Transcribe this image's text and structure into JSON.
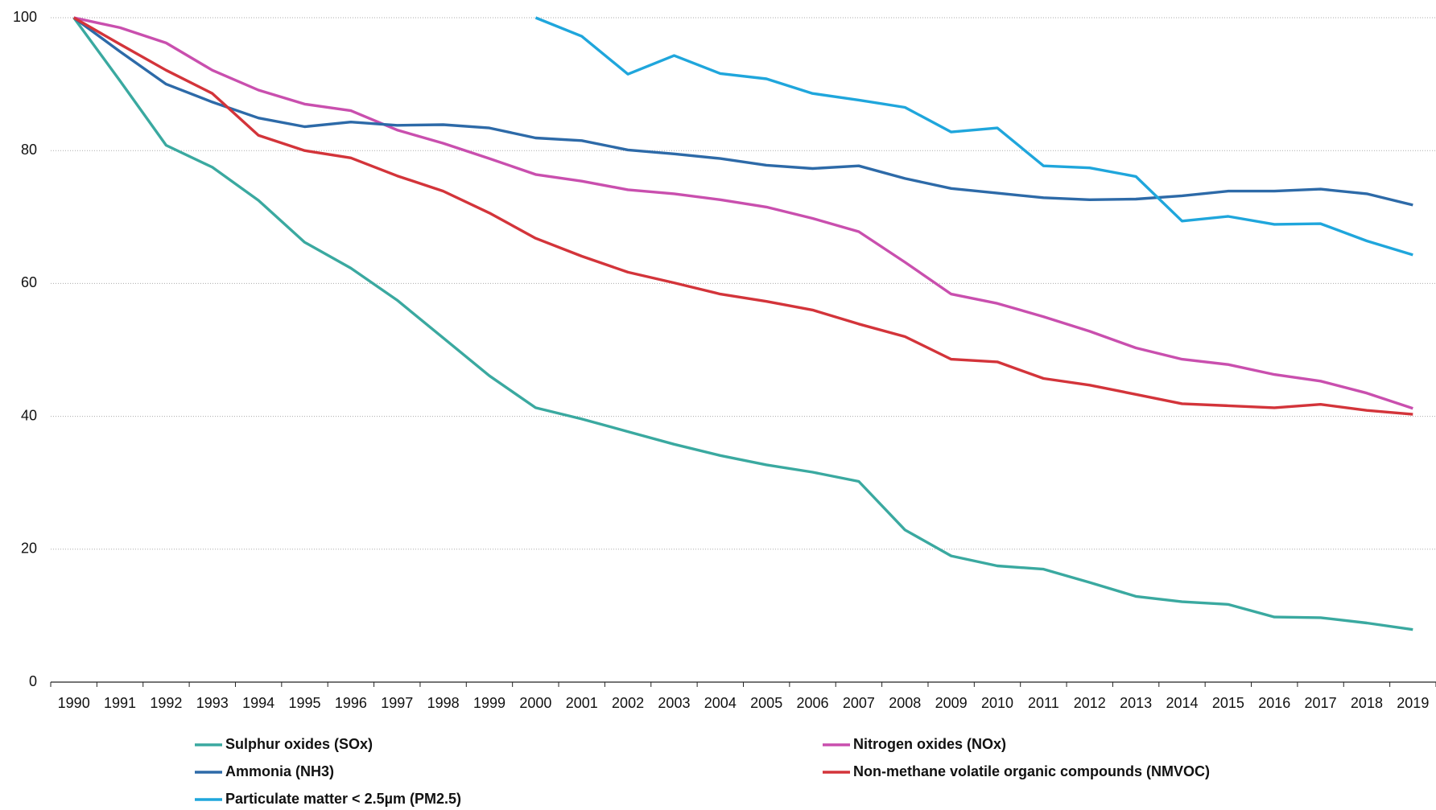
{
  "chart_data": {
    "type": "line",
    "categories": [
      "1990",
      "1991",
      "1992",
      "1993",
      "1994",
      "1995",
      "1996",
      "1997",
      "1998",
      "1999",
      "2000",
      "2001",
      "2002",
      "2003",
      "2004",
      "2005",
      "2006",
      "2007",
      "2008",
      "2009",
      "2010",
      "2011",
      "2012",
      "2013",
      "2014",
      "2015",
      "2016",
      "2017",
      "2018",
      "2019"
    ],
    "series": [
      {
        "name": "Sulphur oxides (SOx)",
        "color": "#3aa9a0",
        "values": [
          100,
          90.5,
          80.8,
          77.5,
          72.5,
          66.2,
          62.3,
          57.5,
          51.8,
          46.1,
          41.3,
          39.6,
          37.7,
          35.8,
          34.1,
          32.7,
          31.6,
          30.2,
          22.9,
          19.0,
          17.5,
          17.0,
          15.0,
          12.9,
          12.1,
          11.7,
          9.8,
          9.7,
          8.9,
          7.9
        ]
      },
      {
        "name": "Nitrogen oxides (NOx)",
        "color": "#c94fae",
        "values": [
          100,
          98.5,
          96.2,
          92.1,
          89.1,
          87.0,
          86.0,
          83.1,
          81.1,
          78.8,
          76.4,
          75.4,
          74.1,
          73.5,
          72.6,
          71.5,
          69.8,
          67.8,
          63.2,
          58.4,
          57.0,
          55.0,
          52.8,
          50.3,
          48.6,
          47.8,
          46.3,
          45.3,
          43.5,
          41.2
        ]
      },
      {
        "name": "Ammonia (NH3)",
        "color": "#2d6aa8",
        "values": [
          100,
          94.9,
          90.0,
          87.3,
          84.9,
          83.6,
          84.3,
          83.8,
          83.9,
          83.4,
          81.9,
          81.5,
          80.1,
          79.5,
          78.8,
          77.8,
          77.3,
          77.7,
          75.8,
          74.3,
          73.6,
          72.9,
          72.6,
          72.7,
          73.2,
          73.9,
          73.9,
          74.2,
          73.5,
          71.8
        ]
      },
      {
        "name": "Non-methane volatile organic compounds (NMVOC)",
        "color": "#d3343a",
        "values": [
          100,
          96.0,
          92.1,
          88.6,
          82.3,
          80.0,
          78.9,
          76.2,
          73.9,
          70.6,
          66.8,
          64.1,
          61.7,
          60.1,
          58.4,
          57.3,
          56.0,
          53.9,
          52.0,
          48.6,
          48.2,
          45.7,
          44.7,
          43.3,
          41.9,
          41.6,
          41.3,
          41.8,
          40.9,
          40.3
        ]
      },
      {
        "name": "Particulate matter < 2.5µm (PM2.5)",
        "color": "#1fa6dc",
        "values": [
          null,
          null,
          null,
          null,
          null,
          null,
          null,
          null,
          null,
          null,
          100,
          97.2,
          91.5,
          94.3,
          91.6,
          90.8,
          88.6,
          87.6,
          86.5,
          82.8,
          83.4,
          77.7,
          77.4,
          76.1,
          69.4,
          70.1,
          68.9,
          69.0,
          66.4,
          64.3
        ]
      }
    ],
    "ylim": [
      0,
      100
    ],
    "yticks": [
      0,
      20,
      40,
      60,
      80,
      100
    ],
    "grid": true
  }
}
